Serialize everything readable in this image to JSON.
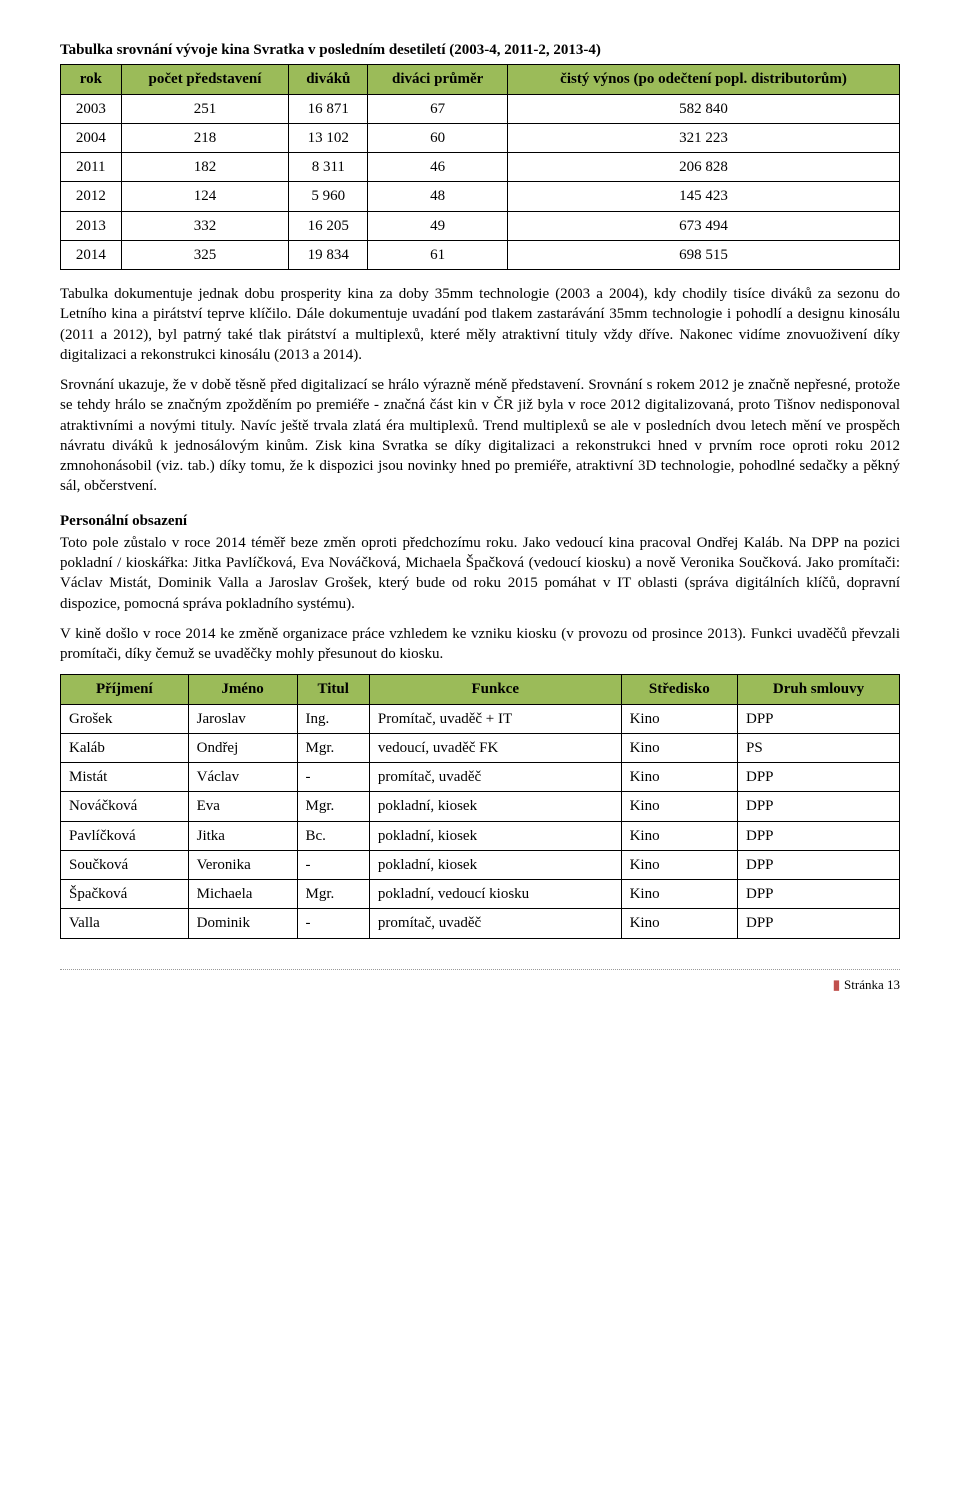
{
  "title": "Tabulka srovnání vývoje kina Svratka v posledním desetiletí (2003-4, 2011-2, 2013-4)",
  "table1": {
    "headers": [
      "rok",
      "počet představení",
      "diváků",
      "diváci průměr",
      "čistý výnos (po odečtení popl. distributorům)"
    ],
    "rows": [
      [
        "2003",
        "251",
        "16 871",
        "67",
        "582 840"
      ],
      [
        "2004",
        "218",
        "13 102",
        "60",
        "321 223"
      ],
      [
        "2011",
        "182",
        "8 311",
        "46",
        "206 828"
      ],
      [
        "2012",
        "124",
        "5 960",
        "48",
        "145 423"
      ],
      [
        "2013",
        "332",
        "16 205",
        "49",
        "673 494"
      ],
      [
        "2014",
        "325",
        "19 834",
        "61",
        "698 515"
      ]
    ]
  },
  "para1": "Tabulka dokumentuje jednak dobu prosperity kina za doby 35mm technologie (2003 a 2004), kdy chodily tisíce diváků za sezonu do Letního kina a pirátství teprve klíčilo. Dále dokumentuje uvadání pod tlakem zastarávání 35mm technologie i pohodlí a designu kinosálu (2011 a 2012), byl patrný také tlak pirátství a multiplexů, které měly atraktivní tituly vždy dříve. Nakonec vidíme znovuoživení díky digitalizaci a rekonstrukci kinosálu (2013 a 2014).",
  "para2": "Srovnání ukazuje, že v době těsně před digitalizací se hrálo výrazně méně představení. Srovnání s rokem 2012 je značně nepřesné, protože se tehdy hrálo se značným zpožděním po premiéře - značná část kin v ČR již byla v roce 2012 digitalizovaná, proto Tišnov nedisponoval atraktivními a novými tituly. Navíc ještě trvala zlatá éra multiplexů. Trend multiplexů se ale v posledních dvou letech mění ve prospěch návratu diváků k jednosálovým kinům. Zisk kina Svratka se díky digitalizaci a rekonstrukci hned v prvním roce oproti roku 2012 zmnohonásobil (viz. tab.) díky tomu, že k dispozici jsou novinky hned po premiéře, atraktivní 3D technologie, pohodlné sedačky a pěkný sál, občerstvení.",
  "section2_title": "Personální obsazení",
  "para3": "Toto pole zůstalo v roce 2014 téměř beze změn oproti předchozímu roku. Jako vedoucí kina pracoval Ondřej Kaláb. Na DPP na pozici pokladní / kioskářka: Jitka Pavlíčková, Eva Nováčková, Michaela Špačková (vedoucí kiosku) a nově Veronika Součková. Jako promítači: Václav Mistát, Dominik Valla a Jaroslav Grošek, který bude od roku 2015 pomáhat v IT oblasti (správa digitálních klíčů, dopravní dispozice, pomocná správa pokladního systému).",
  "para4": "V kině došlo v roce 2014 ke změně organizace práce vzhledem ke vzniku kiosku (v provozu od prosince 2013). Funkci uvaděčů převzali promítači, díky čemuž se uvaděčky mohly přesunout do kiosku.",
  "table2": {
    "headers": [
      "Příjmení",
      "Jméno",
      "Titul",
      "Funkce",
      "Středisko",
      "Druh smlouvy"
    ],
    "rows": [
      [
        "Grošek",
        "Jaroslav",
        "Ing.",
        "Promítač, uvaděč + IT",
        "Kino",
        "DPP"
      ],
      [
        "Kaláb",
        "Ondřej",
        "Mgr.",
        "vedoucí, uvaděč FK",
        "Kino",
        "PS"
      ],
      [
        "Mistát",
        "Václav",
        "-",
        "promítač, uvaděč",
        "Kino",
        "DPP"
      ],
      [
        "Nováčková",
        "Eva",
        "Mgr.",
        "pokladní, kiosek",
        "Kino",
        "DPP"
      ],
      [
        "Pavlíčková",
        "Jitka",
        "Bc.",
        "pokladní, kiosek",
        "Kino",
        "DPP"
      ],
      [
        "Součková",
        "Veronika",
        "-",
        "pokladní, kiosek",
        "Kino",
        "DPP"
      ],
      [
        "Špačková",
        "Michaela",
        "Mgr.",
        "pokladní, vedoucí kiosku",
        "Kino",
        "DPP"
      ],
      [
        "Valla",
        "Dominik",
        "-",
        "promítač, uvaděč",
        "Kino",
        "DPP"
      ]
    ]
  },
  "footer": "Stránka 13"
}
